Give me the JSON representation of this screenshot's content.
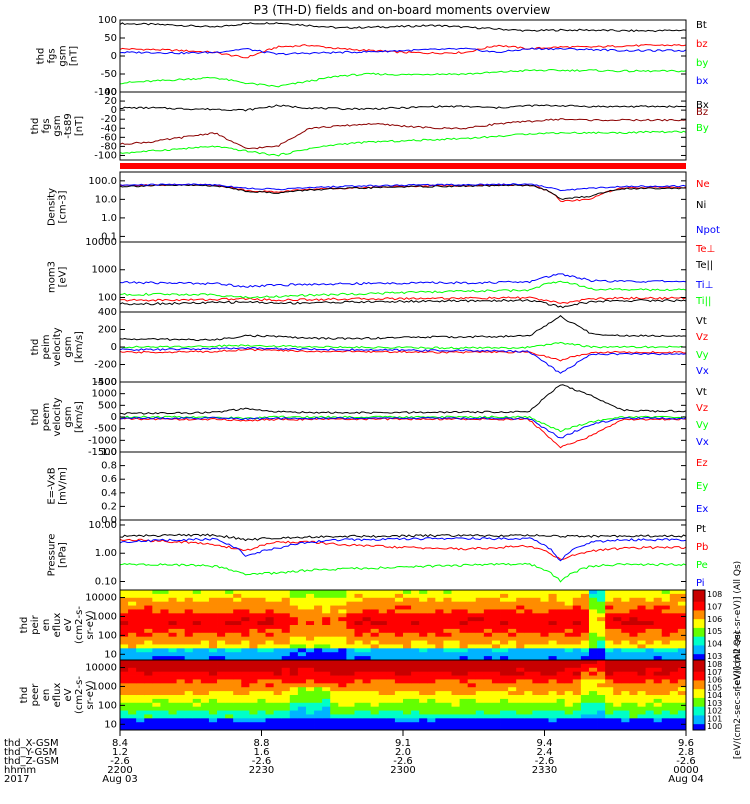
{
  "title": "P3 (TH-D) fields and on-board moments overview",
  "colors": {
    "black": "#000000",
    "red": "#ff0000",
    "green": "#00ff00",
    "blue": "#0000ff",
    "darkred": "#8b0000"
  },
  "chart_data": {
    "type": "line",
    "time_range": [
      "2017-08-03 22:00",
      "2017-08-04 00:00"
    ],
    "panels": [
      {
        "id": "fgs",
        "ylabel": [
          "thd",
          "fgs",
          "gsm",
          "[nT]"
        ],
        "ticks": [
          "100",
          "50",
          "0",
          "-50",
          "-100"
        ],
        "ylim": [
          -100,
          100
        ],
        "scale": "linear",
        "series": [
          {
            "name": "Bt",
            "color": "#000000",
            "values": [
              90,
              88,
              85,
              80,
              90,
              92,
              85,
              78,
              80,
              82,
              85,
              80,
              75,
              70,
              72,
              72,
              70,
              70,
              72
            ]
          },
          {
            "name": "bz",
            "color": "#ff0000",
            "values": [
              20,
              18,
              15,
              10,
              -5,
              25,
              30,
              20,
              15,
              10,
              8,
              10,
              30,
              20,
              25,
              25,
              28,
              30,
              30
            ]
          },
          {
            "name": "by",
            "color": "#00ff00",
            "values": [
              -75,
              -70,
              -65,
              -60,
              -75,
              -85,
              -70,
              -55,
              -50,
              -52,
              -50,
              -50,
              -45,
              -40,
              -40,
              -40,
              -42,
              -42,
              -42
            ]
          },
          {
            "name": "bx",
            "color": "#0000ff",
            "values": [
              10,
              10,
              8,
              10,
              20,
              5,
              8,
              10,
              12,
              15,
              18,
              20,
              10,
              20,
              20,
              18,
              15,
              15,
              15
            ]
          }
        ]
      },
      {
        "id": "fgs_dsl",
        "ylabel": [
          "thd",
          "fgs",
          "gsm",
          "-ts89",
          "[nT]"
        ],
        "ticks": [
          "40",
          "20",
          "0",
          "-20",
          "-40",
          "-60",
          "-80",
          "-100"
        ],
        "ylim": [
          -110,
          40
        ],
        "scale": "linear",
        "series": [
          {
            "name": "Bx",
            "color": "#000000",
            "values": [
              5,
              5,
              3,
              2,
              0,
              10,
              5,
              3,
              3,
              5,
              8,
              8,
              5,
              10,
              10,
              8,
              8,
              8,
              8
            ]
          },
          {
            "name": "Bz",
            "color": "#8b0000",
            "values": [
              -75,
              -70,
              -60,
              -50,
              -85,
              -80,
              -40,
              -35,
              -30,
              -35,
              -40,
              -40,
              -30,
              -25,
              -20,
              -22,
              -22,
              -22,
              -22
            ]
          },
          {
            "name": "By",
            "color": "#00ff00",
            "values": [
              -95,
              -90,
              -85,
              -80,
              -90,
              -100,
              -85,
              -75,
              -70,
              -68,
              -65,
              -62,
              -58,
              -52,
              -50,
              -50,
              -50,
              -48,
              -48
            ]
          }
        ]
      },
      {
        "id": "density",
        "ylabel": [
          "Density",
          "[cm-3]"
        ],
        "ticks": [
          "100.0",
          "10.0",
          "1.0",
          "0.1"
        ],
        "ylim": [
          0.05,
          300
        ],
        "scale": "log",
        "series": [
          {
            "name": "Ne",
            "color": "#ff0000",
            "values": [
              55,
              60,
              62,
              60,
              30,
              25,
              35,
              40,
              45,
              50,
              55,
              55,
              58,
              60,
              8,
              10,
              40,
              45,
              45
            ]
          },
          {
            "name": "Ni",
            "color": "#000000",
            "values": [
              50,
              55,
              58,
              55,
              28,
              22,
              32,
              38,
              42,
              48,
              50,
              52,
              55,
              58,
              10,
              15,
              38,
              40,
              40
            ]
          },
          {
            "name": "Npot",
            "color": "#0000ff",
            "values": [
              58,
              62,
              65,
              62,
              40,
              35,
              42,
              50,
              55,
              58,
              62,
              62,
              65,
              68,
              30,
              40,
              50,
              52,
              52
            ]
          }
        ]
      },
      {
        "id": "temp",
        "ylabel": [
          "mom3",
          "[eV]"
        ],
        "ticks": [
          "10000",
          "1000",
          "100"
        ],
        "ylim": [
          30,
          10000
        ],
        "scale": "log",
        "series": [
          {
            "name": "Te⊥",
            "color": "#ff0000",
            "values": [
              80,
              80,
              82,
              85,
              90,
              80,
              85,
              88,
              90,
              92,
              95,
              95,
              95,
              100,
              60,
              90,
              95,
              95,
              95
            ]
          },
          {
            "name": "Te||",
            "color": "#000000",
            "values": [
              60,
              60,
              62,
              65,
              70,
              62,
              65,
              68,
              70,
              72,
              75,
              75,
              78,
              80,
              45,
              70,
              78,
              78,
              78
            ]
          },
          {
            "name": "Ti⊥",
            "color": "#0000ff",
            "values": [
              350,
              340,
              330,
              320,
              250,
              280,
              300,
              310,
              320,
              330,
              340,
              340,
              350,
              360,
              700,
              400,
              380,
              380,
              380
            ]
          },
          {
            "name": "Ti||",
            "color": "#00ff00",
            "values": [
              130,
              130,
              130,
              125,
              100,
              110,
              120,
              130,
              140,
              150,
              160,
              170,
              175,
              180,
              400,
              200,
              190,
              190,
              190
            ]
          }
        ]
      },
      {
        "id": "peim_vel",
        "ylabel": [
          "thd",
          "peim",
          "velocity",
          "gsm",
          "[km/s]"
        ],
        "ticks": [
          "400",
          "200",
          "0",
          "-200",
          "-400"
        ],
        "ylim": [
          -400,
          400
        ],
        "scale": "linear",
        "series": [
          {
            "name": "Vt",
            "color": "#000000",
            "values": [
              90,
              90,
              85,
              80,
              130,
              120,
              100,
              95,
              100,
              110,
              115,
              115,
              120,
              125,
              350,
              150,
              130,
              130,
              130
            ]
          },
          {
            "name": "Vz",
            "color": "#ff0000",
            "values": [
              -60,
              -60,
              -55,
              -50,
              -30,
              -40,
              -50,
              -50,
              -55,
              -55,
              -60,
              -60,
              -60,
              -60,
              -150,
              -60,
              -60,
              -60,
              -60
            ]
          },
          {
            "name": "Vy",
            "color": "#00ff00",
            "values": [
              0,
              0,
              5,
              10,
              20,
              10,
              5,
              0,
              -5,
              -5,
              -10,
              -10,
              -10,
              -5,
              50,
              0,
              0,
              0,
              0
            ]
          },
          {
            "name": "Vx",
            "color": "#0000ff",
            "values": [
              -30,
              -30,
              -25,
              -20,
              -10,
              -20,
              -25,
              -30,
              -35,
              -35,
              -40,
              -40,
              -45,
              -50,
              -300,
              -80,
              -80,
              -80,
              -80
            ]
          }
        ]
      },
      {
        "id": "peem_vel",
        "ylabel": [
          "thd",
          "peem",
          "velocity",
          "gsm",
          "[km/s]"
        ],
        "ticks": [
          "1500",
          "1000",
          "500",
          "0",
          "-500",
          "-1000",
          "-1500"
        ],
        "ylim": [
          -1500,
          1500
        ],
        "scale": "linear",
        "series": [
          {
            "name": "Vt",
            "color": "#000000",
            "values": [
              150,
              160,
              170,
              200,
              350,
              220,
              200,
              180,
              180,
              190,
              200,
              210,
              220,
              230,
              1400,
              900,
              300,
              250,
              250
            ]
          },
          {
            "name": "Vz",
            "color": "#ff0000",
            "values": [
              -80,
              -90,
              -100,
              -100,
              -150,
              -100,
              -100,
              -90,
              -90,
              -90,
              -90,
              -90,
              -100,
              -100,
              -1300,
              -800,
              -100,
              -100,
              -100
            ]
          },
          {
            "name": "Vy",
            "color": "#00ff00",
            "values": [
              0,
              0,
              0,
              0,
              -50,
              0,
              0,
              0,
              0,
              0,
              0,
              0,
              0,
              0,
              -600,
              -200,
              0,
              0,
              0
            ]
          },
          {
            "name": "Vx",
            "color": "#0000ff",
            "values": [
              -50,
              -50,
              -50,
              -50,
              -80,
              -60,
              -50,
              -50,
              -50,
              -50,
              -50,
              -50,
              -60,
              -60,
              -900,
              -300,
              -60,
              -60,
              -60
            ]
          }
        ]
      },
      {
        "id": "efield",
        "ylabel": [
          "E=-VxB",
          "[mV/m]"
        ],
        "ticks": [
          "1.0",
          "0.8",
          "0.6",
          "0.4",
          "0.2",
          "0.0"
        ],
        "ylim": [
          0,
          1
        ],
        "scale": "linear",
        "series": [
          {
            "name": "Ez",
            "color": "#ff0000",
            "values": []
          },
          {
            "name": "Ey",
            "color": "#00ff00",
            "values": []
          },
          {
            "name": "Ex",
            "color": "#0000ff",
            "values": []
          }
        ]
      },
      {
        "id": "pressure",
        "ylabel": [
          "Pressure",
          "[nPa]"
        ],
        "ticks": [
          "10.00",
          "1.00",
          "0.10"
        ],
        "ylim": [
          0.05,
          15
        ],
        "scale": "log",
        "series": [
          {
            "name": "Pt",
            "color": "#000000",
            "values": [
              4.0,
              4.2,
              4.4,
              4.4,
              3.0,
              3.5,
              3.8,
              4.0,
              4.0,
              4.1,
              4.2,
              4.2,
              4.2,
              4.3,
              4.0,
              4.0,
              4.1,
              4.1,
              4.1
            ]
          },
          {
            "name": "Pb",
            "color": "#ff0000",
            "values": [
              3.0,
              2.8,
              2.5,
              2.0,
              1.2,
              2.5,
              2.5,
              2.0,
              1.8,
              1.6,
              1.5,
              1.4,
              1.6,
              1.8,
              0.6,
              1.2,
              1.5,
              1.6,
              1.6
            ]
          },
          {
            "name": "Pe",
            "color": "#00ff00",
            "values": [
              0.4,
              0.4,
              0.38,
              0.35,
              0.18,
              0.2,
              0.25,
              0.28,
              0.3,
              0.32,
              0.35,
              0.38,
              0.4,
              0.42,
              0.1,
              0.35,
              0.4,
              0.4,
              0.4
            ]
          },
          {
            "name": "Pi",
            "color": "#0000ff",
            "values": [
              2.5,
              2.8,
              3.0,
              3.2,
              0.8,
              1.5,
              2.5,
              3.0,
              3.0,
              3.2,
              3.3,
              3.3,
              3.3,
              3.4,
              0.5,
              2.5,
              3.0,
              3.0,
              3.0
            ]
          }
        ]
      },
      {
        "id": "peir_spec",
        "type": "heatmap",
        "ylabel": [
          "thd",
          "peir",
          "en",
          "eflux",
          "eV",
          "(cm2-s-",
          "sr-eV)"
        ],
        "ticks": [
          "10000",
          "1000",
          "100",
          "10"
        ],
        "ylim": [
          5,
          25000
        ],
        "scale": "log",
        "colorbar": {
          "label": "[eV/(cm2-sec-sr-eV)] (All Qs)",
          "ticks": [
            "10^8",
            "10^7",
            "10^6",
            "10^5",
            "10^4",
            "10^3"
          ]
        }
      },
      {
        "id": "peer_spec",
        "type": "heatmap",
        "ylabel": [
          "thd",
          "peer",
          "en",
          "eflux",
          "eV",
          "(cm2-s-",
          "sr-eV)"
        ],
        "ticks": [
          "10000",
          "1000",
          "100",
          "10"
        ],
        "ylim": [
          5,
          25000
        ],
        "scale": "log",
        "colorbar": {
          "label": "[eV/(cm2-sec-sr-eV)] (All Qs)",
          "ticks": [
            "10^8",
            "10^7",
            "10^6",
            "10^5",
            "10^4",
            "10^3",
            "10^2",
            "10^1",
            "10^0"
          ]
        }
      }
    ],
    "time_axis": {
      "row_labels": [
        "thd_X-GSM",
        "thd_Y-GSM",
        "thd_Z-GSM",
        "hhmm",
        "2017"
      ],
      "columns": [
        {
          "x": "8.4",
          "y": "1.2",
          "z": "-2.6",
          "hhmm": "2200",
          "date": "Aug 03"
        },
        {
          "x": "8.8",
          "y": "1.6",
          "z": "-2.6",
          "hhmm": "2230",
          "date": ""
        },
        {
          "x": "9.1",
          "y": "2.0",
          "z": "-2.6",
          "hhmm": "2300",
          "date": ""
        },
        {
          "x": "9.4",
          "y": "2.4",
          "z": "-2.6",
          "hhmm": "2330",
          "date": ""
        },
        {
          "x": "9.6",
          "y": "2.8",
          "z": "-2.6",
          "hhmm": "0000",
          "date": "Aug 04"
        }
      ]
    }
  }
}
